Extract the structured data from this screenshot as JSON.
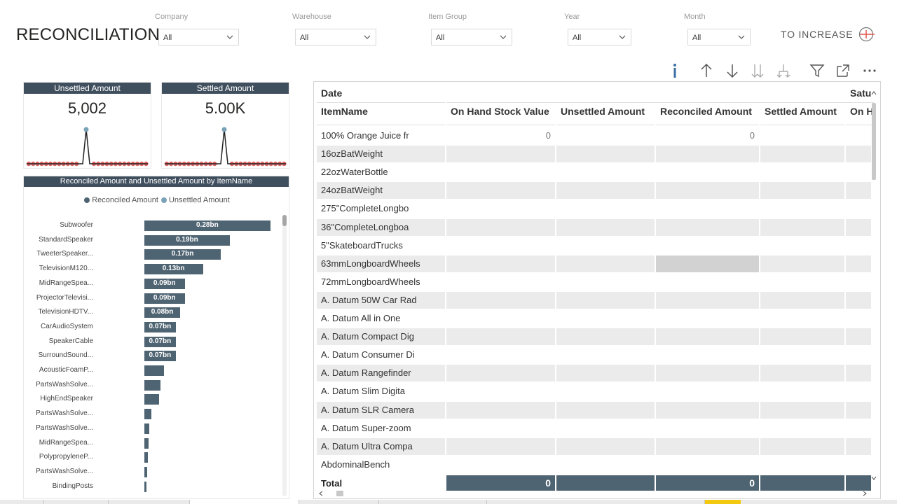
{
  "page": {
    "title": "RECONCILIATION"
  },
  "slicers": [
    {
      "label": "Company",
      "value": "All"
    },
    {
      "label": "Warehouse",
      "value": "All"
    },
    {
      "label": "Item Group",
      "value": "All"
    },
    {
      "label": "Year",
      "value": "All"
    },
    {
      "label": "Month",
      "value": "All"
    }
  ],
  "increase_button": {
    "label": "TO INCREASE"
  },
  "kpis": {
    "unsettled": {
      "title": "Unsettled Amount",
      "value": "5,002"
    },
    "settled": {
      "title": "Settled Amount",
      "value": "5.00K"
    }
  },
  "colors": {
    "header": "#404f5e",
    "bar": "#4f6472",
    "reconciled_dot": "#4f6472",
    "unsettled_dot": "#7aa3b8",
    "sparkline_dots": "#e06666",
    "increase_accent": "#e0554d"
  },
  "bar_chart": {
    "title": "Reconciled Amount and Unsettled Amount by ItemName",
    "legend": [
      "Reconciled Amount",
      "Unsettled Amount"
    ]
  },
  "chart_data": {
    "type": "bar",
    "orientation": "horizontal",
    "title": "Reconciled Amount and Unsettled Amount by ItemName",
    "legend": [
      "Reconciled Amount",
      "Unsettled Amount"
    ],
    "legend_position": "top-center",
    "unit": "bn",
    "categories": [
      "Subwoofer",
      "StandardSpeaker",
      "TweeterSpeaker...",
      "TelevisionM120...",
      "MidRangeSpea...",
      "ProjectorTelevisi...",
      "TelevisionHDTV...",
      "CarAudioSystem",
      "SpeakerCable",
      "SurroundSound...",
      "AcousticFoamP...",
      "PartsWashSolve...",
      "HighEndSpeaker",
      "PartsWashSolve...",
      "PartsWashSolve...",
      "MidRangeSpea...",
      "PolypropyleneP...",
      "PartsWashSolve...",
      "BindingPosts"
    ],
    "values": [
      0.28,
      0.19,
      0.17,
      0.13,
      0.09,
      0.09,
      0.08,
      0.07,
      0.07,
      0.07,
      0.043,
      0.035,
      0.032,
      0.016,
      0.011,
      0.009,
      0.007,
      0.006,
      0.004
    ],
    "data_labels": [
      "0.28bn",
      "0.19bn",
      "0.17bn",
      "0.13bn",
      "0.09bn",
      "0.09bn",
      "0.08bn",
      "0.07bn",
      "0.07bn",
      "0.07bn",
      "",
      "",
      "",
      "",
      "",
      "",
      "",
      "",
      ""
    ],
    "xlim": [
      0,
      0.3
    ]
  },
  "toolbar": [
    "info-icon",
    "drill-up-icon",
    "drill-down-icon",
    "expand-all-down-icon",
    "expand-hierarchy-icon",
    "filter-icon",
    "focus-mode-icon",
    "more-options-icon"
  ],
  "matrix": {
    "row_header_top": "Date",
    "row_header": "ItemName",
    "column_group": "Satu",
    "columns": [
      "On Hand Stock Value",
      "Unsettled Amount",
      "Reconciled Amount",
      "Settled Amount",
      "On H"
    ],
    "rows": [
      {
        "name": "100% Orange Juice fr",
        "on_hand": "0",
        "unsettled": "",
        "reconciled": "0",
        "settled": ""
      },
      {
        "name": "16ozBatWeight",
        "on_hand": "",
        "unsettled": "",
        "reconciled": "",
        "settled": ""
      },
      {
        "name": "22ozWaterBottle",
        "on_hand": "",
        "unsettled": "",
        "reconciled": "",
        "settled": ""
      },
      {
        "name": "24ozBatWeight",
        "on_hand": "",
        "unsettled": "",
        "reconciled": "",
        "settled": ""
      },
      {
        "name": "275\"CompleteLongbo",
        "on_hand": "",
        "unsettled": "",
        "reconciled": "",
        "settled": ""
      },
      {
        "name": "36\"CompleteLongboa",
        "on_hand": "",
        "unsettled": "",
        "reconciled": "",
        "settled": ""
      },
      {
        "name": "5\"SkateboardTrucks",
        "on_hand": "",
        "unsettled": "",
        "reconciled": "",
        "settled": ""
      },
      {
        "name": "63mmLongboardWheels",
        "on_hand": "",
        "unsettled": "",
        "reconciled": "",
        "settled": ""
      },
      {
        "name": "72mmLongboardWheels",
        "on_hand": "",
        "unsettled": "",
        "reconciled": "",
        "settled": ""
      },
      {
        "name": "A. Datum 50W Car Rad",
        "on_hand": "",
        "unsettled": "",
        "reconciled": "",
        "settled": ""
      },
      {
        "name": "A. Datum All in One",
        "on_hand": "",
        "unsettled": "",
        "reconciled": "",
        "settled": ""
      },
      {
        "name": "A. Datum Compact Dig",
        "on_hand": "",
        "unsettled": "",
        "reconciled": "",
        "settled": ""
      },
      {
        "name": "A. Datum Consumer Di",
        "on_hand": "",
        "unsettled": "",
        "reconciled": "",
        "settled": ""
      },
      {
        "name": "A. Datum Rangefinder",
        "on_hand": "",
        "unsettled": "",
        "reconciled": "",
        "settled": ""
      },
      {
        "name": "A. Datum Slim Digita",
        "on_hand": "",
        "unsettled": "",
        "reconciled": "",
        "settled": ""
      },
      {
        "name": "A. Datum SLR Camera",
        "on_hand": "",
        "unsettled": "",
        "reconciled": "",
        "settled": ""
      },
      {
        "name": "A. Datum Super-zoom",
        "on_hand": "",
        "unsettled": "",
        "reconciled": "",
        "settled": ""
      },
      {
        "name": "A. Datum Ultra Compa",
        "on_hand": "",
        "unsettled": "",
        "reconciled": "",
        "settled": ""
      },
      {
        "name": "AbdominalBench",
        "on_hand": "",
        "unsettled": "",
        "reconciled": "",
        "settled": ""
      }
    ],
    "total": {
      "label": "Total",
      "on_hand": "0",
      "unsettled": "",
      "reconciled": "0",
      "settled": ""
    }
  }
}
